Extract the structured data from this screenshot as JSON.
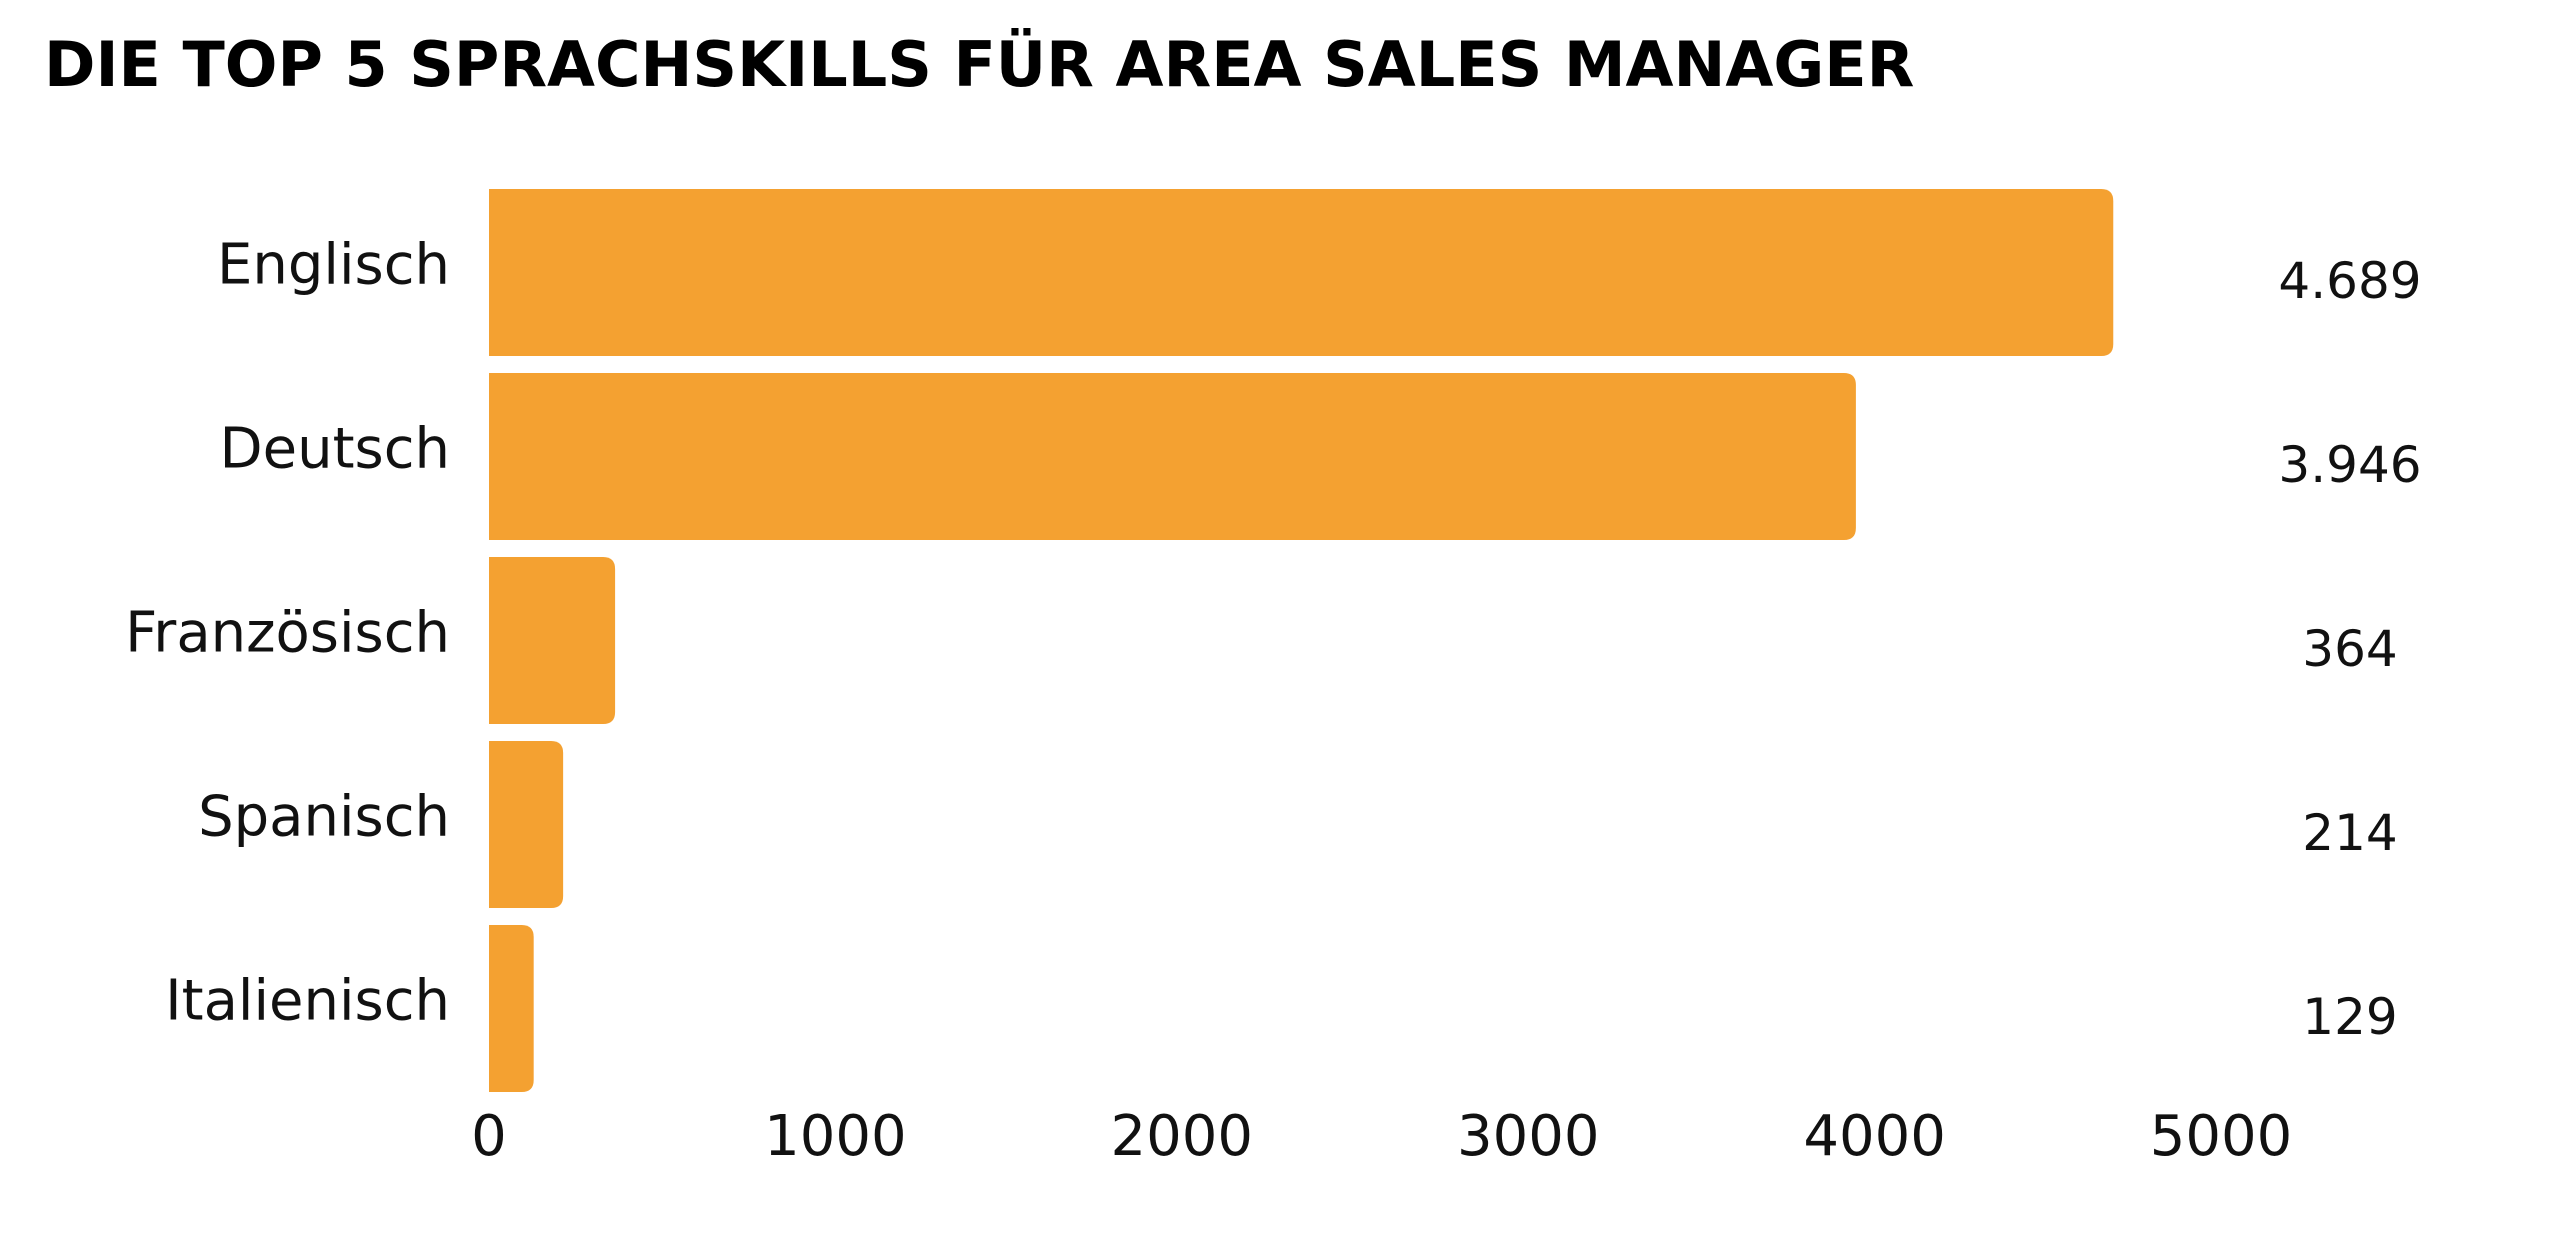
{
  "chart_data": {
    "type": "hbar",
    "title": "DIE TOP 5 SPRACHSKILLS FÜR AREA SALES MANAGER",
    "categories": [
      "Englisch",
      "Deutsch",
      "Französisch",
      "Spanisch",
      "Italienisch"
    ],
    "values": [
      4689,
      3946,
      364,
      214,
      129
    ],
    "value_labels": [
      "4.689",
      "3.946",
      "364",
      "214",
      "129"
    ],
    "color": "#f4a131",
    "xlim": [
      0,
      5000
    ],
    "xticks": [
      0,
      1000,
      2000,
      3000,
      4000,
      5000
    ],
    "grid": false
  }
}
